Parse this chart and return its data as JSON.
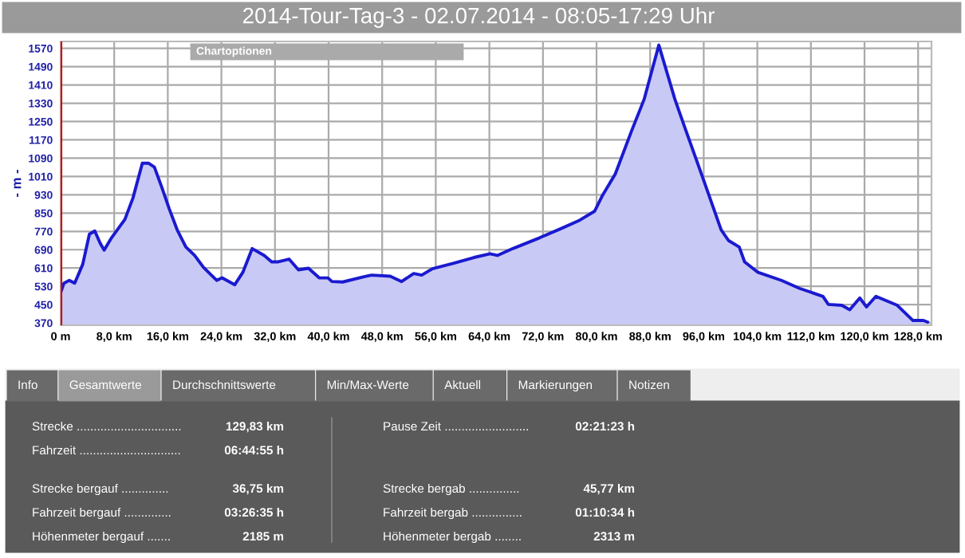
{
  "chart_data": {
    "type": "area",
    "title": "2014-Tour-Tag-3 - 02.07.2014 - 08:05-17:29 Uhr",
    "ylabel": "- m -",
    "x": [
      0,
      0.5,
      1.3,
      2.1,
      3.3,
      4.3,
      5.1,
      5.9,
      6.5,
      7.6,
      9.6,
      10.8,
      12.2,
      13.1,
      14.0,
      15.1,
      16.2,
      17.4,
      18.7,
      20.0,
      21.3,
      22.5,
      23.3,
      24.1,
      26.0,
      27.2,
      28.6,
      30.4,
      31.5,
      32.5,
      34.1,
      35.5,
      37.0,
      38.6,
      39.9,
      40.5,
      42.1,
      45.3,
      46.4,
      49.2,
      50.9,
      52.7,
      53.9,
      55.5,
      58.6,
      61.7,
      64.1,
      65.2,
      67.5,
      71.5,
      74.6,
      77.3,
      79.7,
      80.9,
      82.8,
      85.2,
      87.1,
      89.3,
      91.7,
      93.1,
      95.8,
      98.6,
      99.7,
      101.3,
      102.1,
      104.1,
      107.6,
      110.3,
      113.8,
      114.6,
      116.6,
      117.8,
      119.3,
      120.3,
      121.7,
      124.9,
      127.2,
      128.8,
      129.4
    ],
    "series": [
      {
        "color": "#1a1ad0",
        "values": [
          502,
          544,
          556,
          544,
          626,
          758,
          772,
          719,
          688,
          742,
          823,
          916,
          1068,
          1068,
          1051,
          963,
          870,
          777,
          702,
          665,
          614,
          579,
          556,
          567,
          537,
          591,
          695,
          665,
          637,
          637,
          649,
          602,
          609,
          567,
          567,
          551,
          549,
          572,
          579,
          574,
          551,
          586,
          579,
          607,
          630,
          656,
          672,
          665,
          695,
          742,
          781,
          816,
          858,
          928,
          1021,
          1207,
          1347,
          1584,
          1347,
          1230,
          1009,
          777,
          730,
          702,
          637,
          591,
          556,
          521,
          486,
          451,
          447,
          428,
          479,
          440,
          486,
          447,
          381,
          381,
          374
        ]
      }
    ],
    "xlim": [
      0,
      130
    ],
    "ylim": [
      360,
      1600
    ],
    "xticks": [
      {
        "value": 0,
        "label": "0 m"
      },
      {
        "value": 8,
        "label": "8,0 km"
      },
      {
        "value": 16,
        "label": "16,0 km"
      },
      {
        "value": 24,
        "label": "24,0 km"
      },
      {
        "value": 32,
        "label": "32,0 km"
      },
      {
        "value": 40,
        "label": "40,0 km"
      },
      {
        "value": 48,
        "label": "48,0 km"
      },
      {
        "value": 56,
        "label": "56,0 km"
      },
      {
        "value": 64,
        "label": "64,0 km"
      },
      {
        "value": 72,
        "label": "72,0 km"
      },
      {
        "value": 80,
        "label": "80,0 km"
      },
      {
        "value": 88,
        "label": "88,0 km"
      },
      {
        "value": 96,
        "label": "96,0 km"
      },
      {
        "value": 104,
        "label": "104,0 km"
      },
      {
        "value": 112,
        "label": "112,0 km"
      },
      {
        "value": 120,
        "label": "120,0 km"
      },
      {
        "value": 128,
        "label": "128,0 km"
      }
    ],
    "yticks": [
      370,
      450,
      530,
      610,
      690,
      770,
      850,
      930,
      1010,
      1090,
      1170,
      1250,
      1330,
      1410,
      1490,
      1570
    ],
    "grid": true,
    "ref_lines": [
      {
        "axis": "x",
        "value": 0,
        "color": "#cc0000"
      }
    ],
    "annotations": [
      "Chartoptionen",
      "Info",
      "Gesamtwerte",
      "Durchschnittswerte",
      "Min/Max-Werte",
      "Aktuell",
      "Markierungen",
      "Notizen",
      "Strecke ...............................",
      "129,83 km",
      "Fahrzeit ..............................",
      "06:44:55 h",
      "Strecke bergauf ..............",
      "36,75 km",
      "Fahrzeit bergauf ..............",
      "03:26:35 h",
      "Höhenmeter bergauf .......",
      "2185 m",
      "Pause Zeit .........................",
      "02:21:23 h",
      "Strecke bergab ...............",
      "45,77 km",
      "Fahrzeit bergab ...............",
      "01:10:34 h",
      "Höhenmeter bergab ........",
      "2313 m"
    ]
  }
}
